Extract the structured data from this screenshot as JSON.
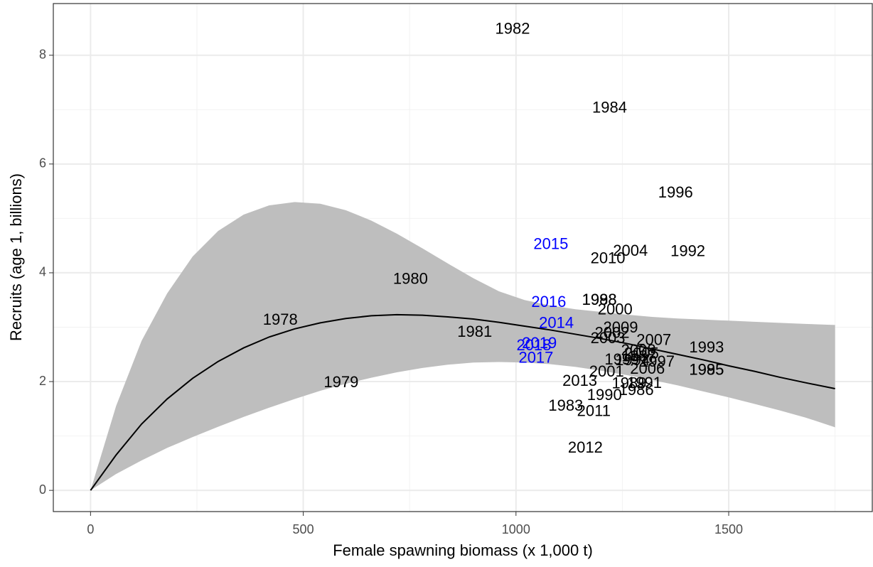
{
  "chart_data": {
    "type": "scatter",
    "x_label": "Female spawning biomass (x 1,000 t)",
    "y_label": "Recruits (age 1, billions)",
    "xlim": [
      -87.5,
      1837.5
    ],
    "ylim": [
      -0.39,
      8.95
    ],
    "xticks": [
      0,
      500,
      1000,
      1500
    ],
    "yticks": [
      0,
      2,
      4,
      6,
      8
    ],
    "xminor": [
      250,
      750,
      1250,
      1750
    ],
    "yminor": [
      1,
      3,
      5,
      7
    ],
    "grid": true,
    "series": [
      {
        "color": "#000000",
        "labels": [
          "1978",
          "1979",
          "1980",
          "1981",
          "1982",
          "1983",
          "1984",
          "1985",
          "1986",
          "1987",
          "1988",
          "1989",
          "1990",
          "1991",
          "1992",
          "1993",
          "1994",
          "1995",
          "1996",
          "1997",
          "1998",
          "1999",
          "2000",
          "2001",
          "2002",
          "2003",
          "2004",
          "2005",
          "2006",
          "2007",
          "2008",
          "2009",
          "2010",
          "2011",
          "2012",
          "2013"
        ],
        "x": [
          446,
          589,
          752,
          903,
          992,
          1117,
          1220,
          1448,
          1283,
          1289,
          1196,
          1266,
          1208,
          1302,
          1404,
          1448,
          1274,
          1448,
          1375,
          1332,
          1196,
          1249,
          1233,
          1213,
          1226,
          1216,
          1269,
          1295,
          1309,
          1324,
          1288,
          1246,
          1216,
          1183,
          1163,
          1150
        ],
        "values": [
          3.12,
          1.97,
          3.87,
          2.9,
          8.47,
          1.54,
          7.02,
          2.2,
          1.83,
          2.45,
          3.49,
          1.95,
          1.74,
          1.96,
          4.38,
          2.61,
          2.38,
          2.2,
          5.46,
          2.35,
          3.49,
          2.39,
          3.31,
          2.17,
          2.88,
          2.78,
          4.39,
          2.5,
          2.22,
          2.75,
          2.56,
          2.98,
          4.25,
          1.44,
          0.77,
          2.0
        ]
      },
      {
        "color": "#0000ff",
        "labels": [
          "2014",
          "2015",
          "2016",
          "2017",
          "2018",
          "2019"
        ],
        "x": [
          1095,
          1082,
          1077,
          1047,
          1042,
          1055
        ],
        "values": [
          3.06,
          4.51,
          3.45,
          2.42,
          2.65,
          2.69
        ]
      }
    ],
    "fit": {
      "color": "#000000",
      "band_color": "#bebebe",
      "x": [
        0,
        60,
        120,
        180,
        240,
        300,
        360,
        420,
        480,
        540,
        600,
        660,
        720,
        780,
        840,
        900,
        960,
        1020,
        1080,
        1140,
        1200,
        1260,
        1320,
        1380,
        1440,
        1500,
        1560,
        1620,
        1680,
        1750
      ],
      "values": [
        0,
        0.65,
        1.22,
        1.68,
        2.06,
        2.37,
        2.62,
        2.82,
        2.97,
        3.08,
        3.16,
        3.21,
        3.23,
        3.22,
        3.19,
        3.15,
        3.09,
        3.02,
        2.95,
        2.87,
        2.79,
        2.7,
        2.6,
        2.5,
        2.4,
        2.29,
        2.19,
        2.08,
        1.98,
        1.87
      ],
      "lower": [
        0,
        0.3,
        0.55,
        0.78,
        0.98,
        1.17,
        1.35,
        1.52,
        1.68,
        1.83,
        1.96,
        2.07,
        2.17,
        2.25,
        2.31,
        2.35,
        2.36,
        2.35,
        2.32,
        2.27,
        2.2,
        2.12,
        2.03,
        1.93,
        1.82,
        1.71,
        1.59,
        1.47,
        1.34,
        1.16
      ],
      "upper": [
        0,
        1.55,
        2.75,
        3.62,
        4.3,
        4.77,
        5.07,
        5.24,
        5.3,
        5.27,
        5.15,
        4.96,
        4.72,
        4.45,
        4.17,
        3.9,
        3.66,
        3.5,
        3.4,
        3.33,
        3.28,
        3.23,
        3.19,
        3.16,
        3.14,
        3.12,
        3.1,
        3.08,
        3.06,
        3.04
      ]
    }
  }
}
